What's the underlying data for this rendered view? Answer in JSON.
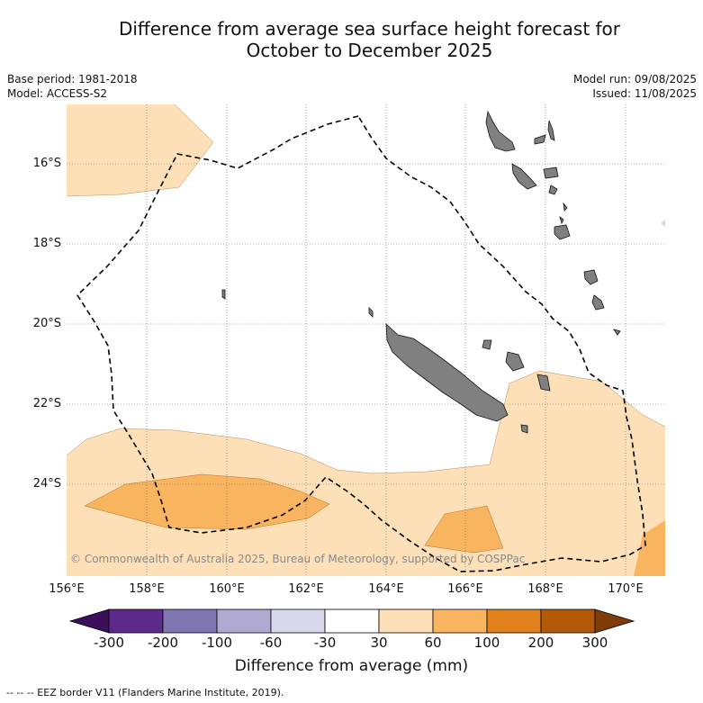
{
  "title": {
    "line1": "Difference from average sea surface height forecast for",
    "line2": "October to December 2025"
  },
  "meta": {
    "base_period": "Base period: 1981-2018",
    "model": "Model: ACCESS-S2",
    "model_run": "Model run: 09/08/2025",
    "issued": "Issued: 11/08/2025"
  },
  "axes": {
    "lat_labels": [
      "16°S",
      "18°S",
      "20°S",
      "22°S",
      "24°S"
    ],
    "lon_labels": [
      "156°E",
      "158°E",
      "160°E",
      "162°E",
      "164°E",
      "166°E",
      "168°E",
      "170°E"
    ]
  },
  "copyright": "© Commonwealth of Australia 2025, Bureau of Meteorology, supported by COSPPac",
  "colorbar": {
    "ticks": [
      "-300",
      "-200",
      "-100",
      "-60",
      "-30",
      "30",
      "60",
      "100",
      "200",
      "300"
    ],
    "colors": [
      "#3b0f5a",
      "#5b2a8a",
      "#8177b0",
      "#b0aad2",
      "#d8d8ea",
      "#ffffff",
      "#fde0b7",
      "#f9b45f",
      "#e0801a",
      "#b35a0a",
      "#7f3b08"
    ],
    "label": "Difference from average (mm)"
  },
  "footer": "-- -- -- EEZ border V11 (Flanders Marine Institute, 2019)."
}
